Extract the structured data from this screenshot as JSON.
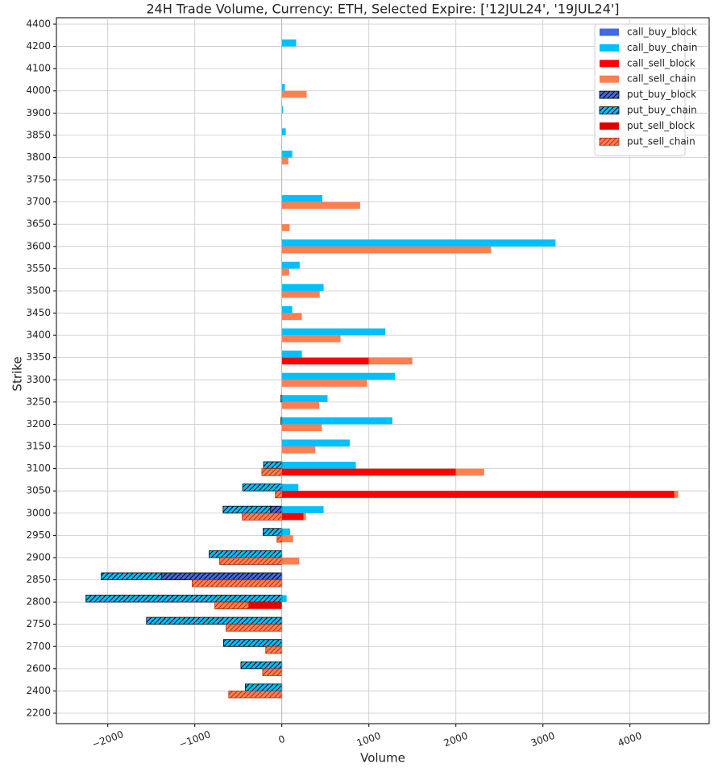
{
  "chart_data": {
    "type": "bar",
    "orientation": "horizontal",
    "title": "24H Trade Volume, Currency: ETH, Selected Expire: ['12JUL24', '19JUL24']",
    "x_label": "Volume",
    "y_label": "Strike",
    "categories": [
      "2200",
      "2400",
      "2600",
      "2700",
      "2750",
      "2800",
      "2850",
      "2900",
      "2950",
      "3000",
      "3050",
      "3100",
      "3150",
      "3200",
      "3250",
      "3300",
      "3350",
      "3400",
      "3450",
      "3500",
      "3550",
      "3600",
      "3650",
      "3700",
      "3750",
      "3800",
      "3850",
      "3900",
      "4000",
      "4100",
      "4200",
      "4400"
    ],
    "xlim": [
      -2590,
      4910
    ],
    "xticks": [
      {
        "value": -2000,
        "label": "−2000"
      },
      {
        "value": -1000,
        "label": "−1000"
      },
      0,
      1000,
      2000,
      3000,
      4000
    ],
    "grid": true,
    "legend": "upper right",
    "series": [
      {
        "name": "call_buy_block",
        "color": "#4169e1",
        "stack": "buy",
        "hatch": false,
        "values": [
          0,
          0,
          0,
          0,
          0,
          0,
          0,
          0,
          0,
          0,
          0,
          0,
          0,
          0,
          0,
          0,
          0,
          0,
          0,
          0,
          0,
          0,
          0,
          0,
          0,
          0,
          0,
          0,
          0,
          0,
          0,
          0
        ]
      },
      {
        "name": "call_buy_chain",
        "color": "#00bfff",
        "stack": "buy",
        "hatch": false,
        "values": [
          0,
          0,
          0,
          0,
          0,
          55,
          0,
          0,
          95,
          480,
          190,
          850,
          780,
          1270,
          525,
          1300,
          230,
          1190,
          120,
          480,
          205,
          3145,
          0,
          465,
          0,
          120,
          45,
          15,
          35,
          0,
          165,
          0
        ]
      },
      {
        "name": "call_sell_block",
        "color": "#ff0000",
        "stack": "sell",
        "hatch": false,
        "values": [
          0,
          0,
          0,
          0,
          0,
          0,
          0,
          0,
          0,
          250,
          4510,
          2000,
          0,
          0,
          0,
          0,
          1000,
          0,
          0,
          0,
          0,
          0,
          0,
          0,
          0,
          0,
          0,
          0,
          0,
          0,
          0,
          0
        ]
      },
      {
        "name": "call_sell_chain",
        "color": "#ff7f50",
        "stack": "sell",
        "hatch": false,
        "values": [
          0,
          0,
          0,
          0,
          0,
          0,
          0,
          200,
          130,
          28,
          45,
          325,
          385,
          460,
          430,
          980,
          500,
          675,
          230,
          435,
          85,
          2405,
          90,
          900,
          0,
          75,
          0,
          0,
          285,
          0,
          0,
          0
        ]
      },
      {
        "name": "put_buy_block",
        "color": "#4169e1",
        "stack": "buy",
        "hatch": true,
        "edgecolor": "#000000",
        "values": [
          0,
          0,
          0,
          0,
          0,
          0,
          -1380,
          0,
          0,
          -130,
          0,
          0,
          0,
          0,
          0,
          0,
          0,
          0,
          0,
          0,
          0,
          0,
          0,
          0,
          0,
          0,
          0,
          0,
          0,
          0,
          0,
          0
        ]
      },
      {
        "name": "put_buy_chain",
        "color": "#00bfff",
        "stack": "buy",
        "hatch": true,
        "edgecolor": "#000000",
        "values": [
          0,
          -420,
          -470,
          -670,
          -1555,
          -2250,
          -695,
          -835,
          -215,
          -545,
          -450,
          -210,
          0,
          -10,
          -10,
          0,
          0,
          0,
          0,
          0,
          0,
          0,
          0,
          0,
          0,
          0,
          0,
          0,
          0,
          0,
          0,
          0
        ]
      },
      {
        "name": "put_sell_block",
        "color": "#e00000",
        "stack": "sell",
        "hatch": false,
        "values": [
          0,
          0,
          0,
          0,
          0,
          -380,
          0,
          0,
          0,
          0,
          0,
          0,
          0,
          0,
          0,
          0,
          0,
          0,
          0,
          0,
          0,
          0,
          0,
          0,
          0,
          0,
          0,
          0,
          0,
          0,
          0,
          0
        ]
      },
      {
        "name": "put_sell_chain",
        "color": "#ff7f50",
        "stack": "sell",
        "hatch": true,
        "edgecolor": "#b03010",
        "values": [
          0,
          -610,
          -220,
          -185,
          -640,
          -390,
          -1030,
          -715,
          -55,
          -455,
          -75,
          -230,
          0,
          0,
          0,
          0,
          0,
          0,
          0,
          0,
          0,
          0,
          0,
          0,
          0,
          0,
          0,
          0,
          0,
          0,
          0,
          0
        ]
      }
    ]
  }
}
